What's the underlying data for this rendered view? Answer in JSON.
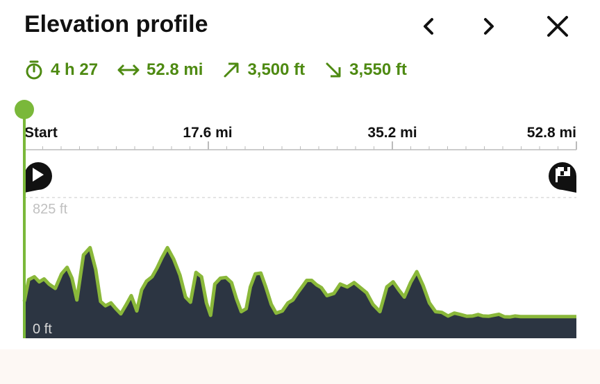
{
  "header": {
    "title": "Elevation profile",
    "prev_icon": "chevron-left-icon",
    "next_icon": "chevron-right-icon",
    "close_icon": "close-icon"
  },
  "stats": {
    "duration": "4 h 27",
    "distance": "52.8 mi",
    "ascent": "3,500 ft",
    "descent": "3,550 ft",
    "duration_icon": "stopwatch-icon",
    "distance_icon": "horizontal-arrows-icon",
    "ascent_icon": "arrow-up-right-icon",
    "descent_icon": "arrow-down-right-icon",
    "accent_color": "#4e8a12"
  },
  "chart_data": {
    "type": "area",
    "x_tick_labels": [
      "Start",
      "17.6 mi",
      "35.2 mi",
      "52.8 mi"
    ],
    "x_range": [
      0,
      52.8
    ],
    "y_labels": [
      "825 ft",
      "0 ft"
    ],
    "y_range": [
      0,
      825
    ],
    "start_icon": "play-icon",
    "finish_icon": "finish-flag-icon",
    "colors": {
      "line": "#8ab83a",
      "fill": "#2c3542",
      "steep": "#e0a040"
    },
    "x": [
      0,
      0.42,
      0.96,
      1.43,
      1.89,
      2.36,
      2.96,
      3.56,
      4.09,
      4.56,
      5.03,
      5.66,
      6.29,
      6.83,
      7.29,
      7.76,
      8.29,
      8.76,
      9.23,
      9.76,
      10.23,
      10.76,
      11.22,
      11.69,
      12.22,
      12.69,
      13.16,
      13.69,
      14.29,
      14.89,
      15.42,
      15.89,
      16.42,
      16.95,
      17.42,
      17.82,
      18.22,
      18.75,
      19.29,
      19.82,
      20.28,
      20.75,
      21.22,
      21.62,
      22.09,
      22.62,
      23.09,
      23.62,
      24.08,
      24.68,
      25.21,
      25.68,
      26.15,
      26.61,
      27.01,
      27.48,
      27.95,
      28.41,
      28.95,
      29.61,
      30.21,
      30.88,
      31.54,
      32.14,
      32.74,
      33.34,
      34.01,
      34.67,
      35.27,
      35.81,
      36.34,
      36.94,
      37.54,
      38.14,
      38.74,
      39.33,
      39.93,
      40.53,
      41.13,
      41.73,
      42.33,
      42.86,
      43.4,
      43.86,
      44.4,
      44.86,
      45.39,
      45.92,
      46.46,
      46.92,
      47.46,
      47.92,
      48.45,
      48.92,
      49.39,
      49.85,
      50.32,
      50.79,
      51.25,
      51.79,
      52.25,
      52.8
    ],
    "y": [
      110,
      260,
      280,
      245,
      265,
      230,
      200,
      300,
      345,
      270,
      120,
      430,
      480,
      330,
      110,
      80,
      100,
      60,
      25,
      90,
      150,
      45,
      190,
      250,
      280,
      340,
      410,
      480,
      400,
      290,
      140,
      105,
      310,
      280,
      100,
      15,
      230,
      270,
      275,
      240,
      130,
      40,
      60,
      210,
      300,
      305,
      210,
      90,
      30,
      45,
      100,
      120,
      170,
      215,
      255,
      255,
      225,
      205,
      150,
      165,
      230,
      210,
      240,
      205,
      170,
      90,
      40,
      210,
      245,
      190,
      140,
      240,
      315,
      220,
      100,
      40,
      35,
      10,
      30,
      20,
      8,
      10,
      20,
      10,
      8,
      15,
      22,
      5,
      4,
      10,
      6,
      6,
      6,
      6,
      6,
      6,
      6,
      6,
      6,
      6,
      6,
      6
    ]
  }
}
